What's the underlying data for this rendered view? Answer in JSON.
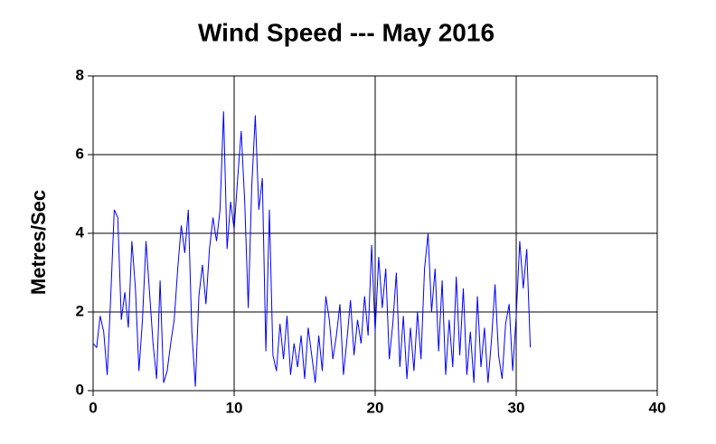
{
  "chart_data": {
    "type": "line",
    "title": "Wind Speed --- May 2016",
    "y_label": "Metres/Sec",
    "x": [
      0,
      0.25,
      0.5,
      0.75,
      1,
      1.25,
      1.5,
      1.75,
      2,
      2.25,
      2.5,
      2.75,
      3,
      3.25,
      3.5,
      3.75,
      4,
      4.25,
      4.5,
      4.75,
      5,
      5.25,
      5.5,
      5.75,
      6,
      6.25,
      6.5,
      6.75,
      7,
      7.25,
      7.5,
      7.75,
      8,
      8.25,
      8.5,
      8.75,
      9,
      9.25,
      9.5,
      9.75,
      10,
      10.25,
      10.5,
      10.75,
      11,
      11.25,
      11.5,
      11.75,
      12,
      12.25,
      12.5,
      12.75,
      13,
      13.25,
      13.5,
      13.75,
      14,
      14.25,
      14.5,
      14.75,
      15,
      15.25,
      15.5,
      15.75,
      16,
      16.25,
      16.5,
      16.75,
      17,
      17.25,
      17.5,
      17.75,
      18,
      18.25,
      18.5,
      18.75,
      19,
      19.25,
      19.5,
      19.75,
      20,
      20.25,
      20.5,
      20.75,
      21,
      21.25,
      21.5,
      21.75,
      22,
      22.25,
      22.5,
      22.75,
      23,
      23.25,
      23.5,
      23.75,
      24,
      24.25,
      24.5,
      24.75,
      25,
      25.25,
      25.5,
      25.75,
      26,
      26.25,
      26.5,
      26.75,
      27,
      27.25,
      27.5,
      27.75,
      28,
      28.25,
      28.5,
      28.75,
      29,
      29.25,
      29.5,
      29.75,
      30,
      30.25,
      30.5,
      30.75,
      31
    ],
    "series": [
      {
        "color": "#0000ff",
        "values": [
          1.2,
          1.1,
          1.9,
          1.5,
          0.4,
          2.4,
          4.6,
          4.4,
          1.8,
          2.5,
          1.6,
          3.8,
          2.6,
          0.5,
          1.8,
          3.8,
          2.5,
          1.2,
          0.3,
          2.8,
          0.2,
          0.5,
          1.2,
          1.8,
          3.1,
          4.2,
          3.5,
          4.6,
          1.5,
          0.1,
          2.4,
          3.2,
          2.2,
          3.6,
          4.4,
          3.8,
          4.6,
          7.1,
          3.6,
          4.8,
          4.1,
          5.4,
          6.6,
          4.8,
          2.1,
          5.2,
          7.0,
          4.6,
          5.4,
          1.0,
          4.6,
          0.9,
          0.5,
          1.7,
          0.8,
          1.9,
          0.4,
          1.2,
          0.6,
          1.4,
          0.3,
          1.6,
          0.9,
          0.2,
          1.4,
          0.5,
          2.4,
          1.8,
          0.8,
          1.4,
          2.2,
          0.4,
          1.3,
          2.3,
          0.9,
          1.8,
          1.2,
          2.4,
          1.4,
          3.7,
          1.5,
          3.4,
          2.1,
          3.1,
          0.8,
          1.7,
          3.0,
          0.6,
          1.9,
          0.3,
          1.6,
          0.5,
          2.0,
          0.8,
          3.1,
          4.0,
          2.0,
          3.1,
          1.0,
          2.8,
          0.4,
          1.8,
          0.6,
          2.9,
          0.9,
          2.6,
          0.4,
          1.5,
          0.2,
          2.4,
          0.6,
          1.6,
          0.2,
          1.3,
          2.7,
          0.9,
          0.3,
          1.7,
          2.2,
          0.5,
          1.9,
          3.8,
          2.6,
          3.6,
          1.1
        ]
      }
    ],
    "xlim": [
      0,
      40
    ],
    "xticks": [
      0,
      10,
      20,
      30,
      40
    ],
    "ylim": [
      0,
      8
    ],
    "yticks": [
      0,
      2,
      4,
      6,
      8
    ],
    "grid": true
  }
}
